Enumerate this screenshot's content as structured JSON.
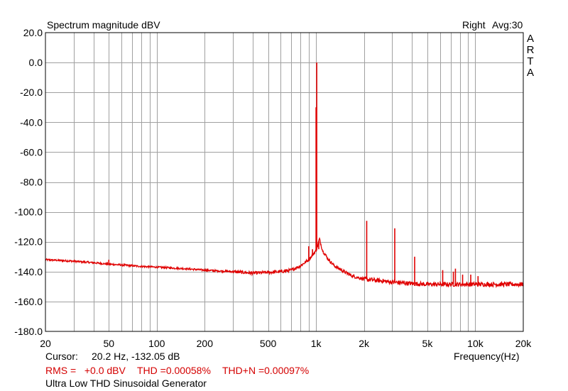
{
  "header": {
    "title": "Spectrum magnitude dBV",
    "channel": "Right",
    "averaging": "Avg:30",
    "brand_letters": [
      "A",
      "R",
      "T",
      "A"
    ]
  },
  "footer": {
    "cursor_label": "Cursor:",
    "cursor_value": "20.2 Hz, -132.05 dB",
    "x_axis_label": "Frequency(Hz)",
    "rms": "RMS =   +0.0 dBV",
    "thd": "THD =0.00058%",
    "thdn": "THD+N =0.00097%",
    "caption": "Ultra Low THD Sinusoidal Generator"
  },
  "colors": {
    "trace": "#e00000",
    "grid": "#a0a0a0",
    "frame": "#000000",
    "stats_text": "#d40000"
  },
  "chart_data": {
    "type": "line",
    "title": "Spectrum magnitude dBV",
    "xlabel": "Frequency(Hz)",
    "ylabel": "",
    "x_scale": "log",
    "xlim": [
      20,
      20000
    ],
    "ylim": [
      -180,
      20
    ],
    "x_ticks": [
      {
        "value": 20,
        "label": "20"
      },
      {
        "value": 50,
        "label": "50"
      },
      {
        "value": 100,
        "label": "100"
      },
      {
        "value": 200,
        "label": "200"
      },
      {
        "value": 500,
        "label": "500"
      },
      {
        "value": 1000,
        "label": "1k"
      },
      {
        "value": 2000,
        "label": "2k"
      },
      {
        "value": 5000,
        "label": "5k"
      },
      {
        "value": 10000,
        "label": "10k"
      },
      {
        "value": 20000,
        "label": "20k"
      }
    ],
    "y_ticks": [
      {
        "value": 20,
        "label": "20.0"
      },
      {
        "value": 0,
        "label": "0.0"
      },
      {
        "value": -20,
        "label": "-20.0"
      },
      {
        "value": -40,
        "label": "-40.0"
      },
      {
        "value": -60,
        "label": "-60.0"
      },
      {
        "value": -80,
        "label": "-80.0"
      },
      {
        "value": -100,
        "label": "-100.0"
      },
      {
        "value": -120,
        "label": "-120.0"
      },
      {
        "value": -140,
        "label": "-140.0"
      },
      {
        "value": -160,
        "label": "-160.0"
      },
      {
        "value": -180,
        "label": "-180.0"
      }
    ],
    "grid": true,
    "series": [
      {
        "noise_floor": {
          "x": [
            20,
            30,
            40,
            50,
            60,
            80,
            100,
            150,
            200,
            300,
            400,
            500,
            600,
            700,
            800,
            900,
            1000,
            1050,
            1100,
            1200,
            1300,
            1500,
            1700,
            2000,
            2500,
            3000,
            4000,
            5000,
            7000,
            10000,
            15000,
            20000
          ],
          "y": [
            -132,
            -133,
            -134,
            -135,
            -135.5,
            -136.5,
            -137,
            -138,
            -139,
            -140,
            -141,
            -140.5,
            -140,
            -139,
            -136,
            -132,
            -126,
            -118,
            -126,
            -132,
            -136,
            -140,
            -143,
            -145,
            -146,
            -147,
            -148,
            -148.5,
            -148.5,
            -148.5,
            -148.5,
            -148.5
          ]
        },
        "spectral_lines": {
          "x": [
            50,
            900,
            950,
            1000,
            1010,
            1040,
            2080,
            3120,
            4160,
            6240,
            7280,
            7500,
            8320,
            9360,
            10400
          ],
          "y": [
            -132,
            -123,
            -125,
            -30,
            0,
            -125,
            -106,
            -111,
            -130,
            -139,
            -140,
            -138,
            -142,
            -142,
            -143
          ]
        }
      }
    ]
  }
}
